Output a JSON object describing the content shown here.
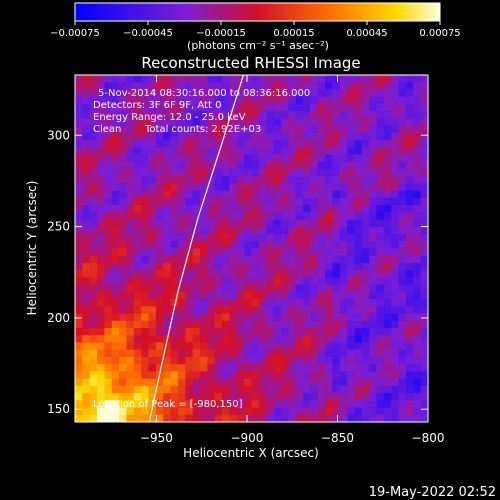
{
  "chart_data": {
    "type": "heatmap",
    "title": "Reconstructed RHESSI Image",
    "xlabel": "Heliocentric X (arcsec)",
    "ylabel": "Heliocentric Y (arcsec)",
    "xlim": [
      -995,
      -800
    ],
    "ylim": [
      143,
      333
    ],
    "xticks": [
      -950,
      -900,
      -850,
      -800
    ],
    "xtick_labels": [
      "−950",
      "−900",
      "−850",
      "−800"
    ],
    "yticks": [
      150,
      200,
      250,
      300
    ],
    "ytick_labels": [
      "150",
      "200",
      "250",
      "300"
    ],
    "colorbar": {
      "range": [
        -0.00075,
        0.00075
      ],
      "ticks": [
        -0.00075,
        -0.00045,
        -0.00015,
        0.00015,
        0.00045,
        0.00075
      ],
      "tick_labels": [
        "−0.00075",
        "−0.00045",
        "−0.00015",
        "0.00015",
        "0.00045",
        "0.00075"
      ],
      "unit_label": "(photons cm⁻² s⁻¹ asec⁻²)",
      "colors": [
        "#0000ff",
        "#7a1fd6",
        "#d40f2a",
        "#ff7000",
        "#ffd800",
        "#ffffe0"
      ]
    },
    "annotations": [
      "5-Nov-2014 08:30:16.000 to 08:36:16.000",
      "Detectors: 3F 6F 9F, Att 0",
      "Energy Range: 12.0 - 25.0 keV",
      "Clean",
      "Total counts: 2.92E+03",
      "Location of Peak = [-980,150]"
    ],
    "peak": [
      -980,
      150
    ],
    "limb_curve": [
      [
        -954,
        143
      ],
      [
        -947,
        175
      ],
      [
        -938,
        215
      ],
      [
        -927,
        255
      ],
      [
        -914,
        295
      ],
      [
        -902,
        333
      ]
    ],
    "grid": false
  },
  "footer": {
    "timestamp": "19-May-2022 02:52"
  }
}
